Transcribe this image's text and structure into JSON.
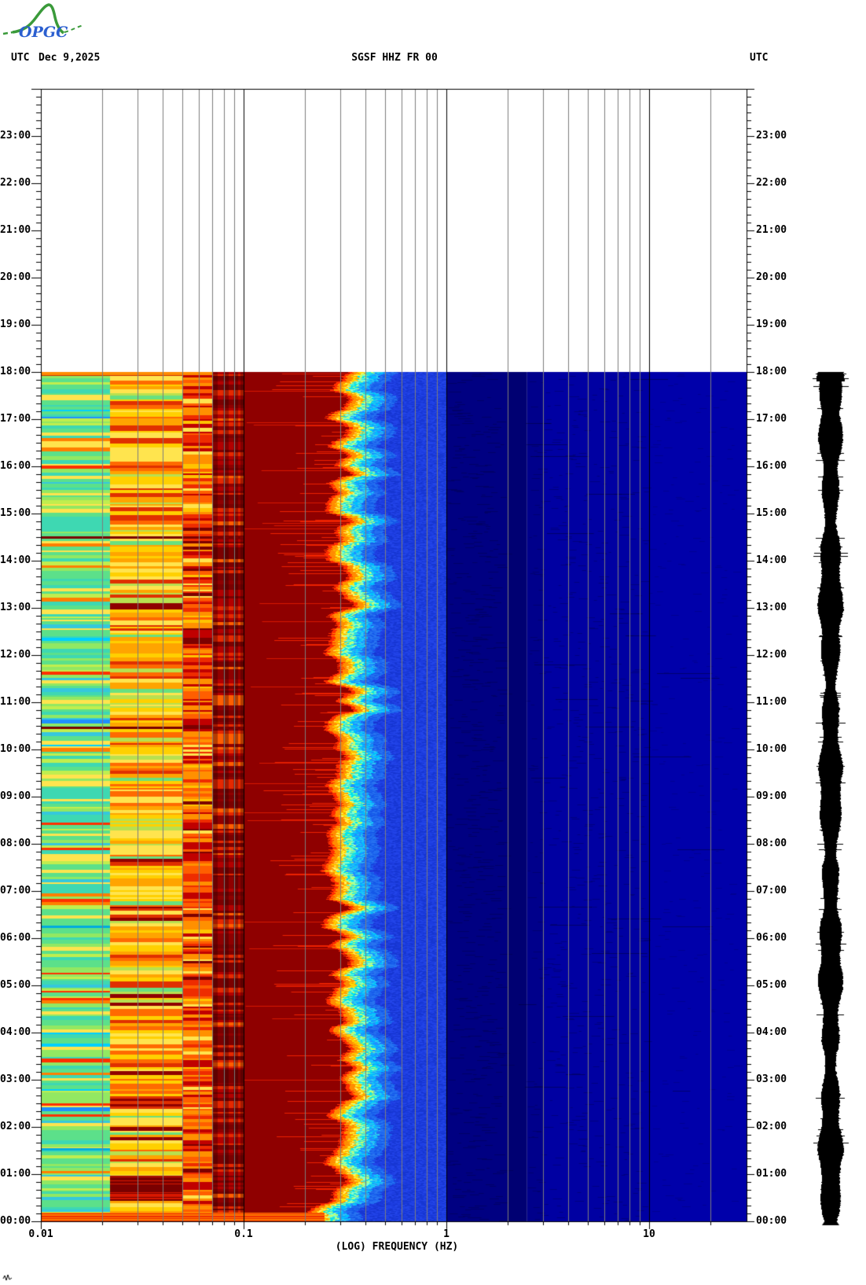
{
  "header": {
    "logo_text": "OPGC",
    "logo_curve_color": "#3a9a3a",
    "logo_text_color": "#2b5fd0",
    "utc_left": "UTC",
    "date": "Dec 9,2025",
    "title": "SGSF HHZ FR 00",
    "utc_right": "UTC"
  },
  "y_axis": {
    "hour_labels": [
      "00:00",
      "01:00",
      "02:00",
      "03:00",
      "04:00",
      "05:00",
      "06:00",
      "07:00",
      "08:00",
      "09:00",
      "10:00",
      "11:00",
      "12:00",
      "13:00",
      "14:00",
      "15:00",
      "16:00",
      "17:00",
      "18:00",
      "19:00",
      "20:00",
      "21:00",
      "22:00",
      "23:00"
    ],
    "minor_tick_minutes": 10
  },
  "x_axis": {
    "title": "(LOG) FREQUENCY (HZ)",
    "scale": "log",
    "min_hz": 0.01,
    "max_hz": 30,
    "tick_labels": [
      {
        "text": "0.01",
        "hz": 0.01
      },
      {
        "text": "0.1",
        "hz": 0.1
      },
      {
        "text": "1",
        "hz": 1
      },
      {
        "text": "10",
        "hz": 10
      }
    ],
    "minor_gridlines_hz": [
      0.02,
      0.03,
      0.04,
      0.05,
      0.06,
      0.07,
      0.08,
      0.09,
      0.2,
      0.3,
      0.4,
      0.5,
      0.6,
      0.7,
      0.8,
      0.9,
      2,
      3,
      4,
      5,
      6,
      7,
      8,
      9,
      20
    ],
    "decade_gridlines_hz": [
      0.1,
      1,
      10
    ],
    "minor_grid_color": "#7d7d7d",
    "decade_grid_color": "#000000"
  },
  "chart_data": {
    "type": "heatmap",
    "subtype": "seismic spectrogram",
    "title": "SGSF HHZ FR 00",
    "date_utc": "Dec 9,2025",
    "colormap": "jet (blue=low power, dark red=high power)",
    "data_time_span_utc": [
      "00:00",
      "18:00"
    ],
    "empty_time_span_utc": [
      "18:00",
      "24:00"
    ],
    "freq_range_hz": [
      0.01,
      30
    ],
    "bands": [
      {
        "hz": [
          0.01,
          0.022
        ],
        "style": "striped",
        "palette": [
          "#5CE08A",
          "#3ED8B2",
          "#92E862",
          "#C0EE4E",
          "#FFE44E",
          "#35C8DC"
        ],
        "weights": [
          26,
          20,
          18,
          10,
          14,
          6
        ],
        "accents": [
          {
            "c": "#FF7F00",
            "p": 0.05
          },
          {
            "c": "#FF3000",
            "p": 0.03
          },
          {
            "c": "#1E90FF",
            "p": 0.02
          },
          {
            "c": "#00CFFF",
            "p": 0.02
          }
        ]
      },
      {
        "hz": [
          0.022,
          0.05
        ],
        "style": "striped",
        "palette": [
          "#FFE44E",
          "#FFD000",
          "#FFA400",
          "#FF6A00",
          "#E03000",
          "#B8E050"
        ],
        "weights": [
          24,
          22,
          18,
          12,
          10,
          8
        ],
        "accents": [
          {
            "c": "#8F0000",
            "p": 0.04
          },
          {
            "c": "#68E080",
            "p": 0.04
          }
        ]
      },
      {
        "hz": [
          0.05,
          0.07
        ],
        "style": "striped",
        "palette": [
          "#FF9000",
          "#FF5E00",
          "#EE2C00",
          "#C00000",
          "#FFC400"
        ],
        "weights": [
          22,
          24,
          22,
          16,
          8
        ],
        "accents": [
          {
            "c": "#7C0000",
            "p": 0.06
          },
          {
            "c": "#FFE44E",
            "p": 0.06
          }
        ]
      },
      {
        "hz": [
          0.07,
          0.1
        ],
        "style": "striped-dark",
        "palette": [
          "#7C0000",
          "#900000",
          "#B40000",
          "#E62800",
          "#FF5E00"
        ],
        "weights": [
          30,
          24,
          18,
          20,
          8
        ],
        "accents": []
      },
      {
        "hz": [
          0.1,
          0.27
        ],
        "style": "solid-maroon",
        "color": "#8F0000",
        "streak_color": "#EE2200",
        "streak_p": 0.12
      },
      {
        "hz": [
          0.27,
          0.55
        ],
        "style": "jagged-transition",
        "ramp": [
          "#FF2D00",
          "#FF8C00",
          "#FFE000",
          "#40E0D0",
          "#00BFFF",
          "#1E68F0",
          "#1C3CE0"
        ]
      },
      {
        "hz": [
          0.55,
          1.0
        ],
        "style": "royal-blue",
        "cells": [
          "#1C3CE0",
          "#1636D2",
          "#2244E8"
        ]
      },
      {
        "hz": [
          1.0,
          2.5
        ],
        "style": "mottled",
        "color": "#000082",
        "dark": "#000068"
      },
      {
        "hz": [
          2.5,
          10.0
        ],
        "style": "mottled",
        "color": "#0000A2",
        "dark": "#000080"
      },
      {
        "hz": [
          10.0,
          30.0
        ],
        "style": "mottled",
        "color": "#0000AA",
        "dark": "#000092"
      }
    ],
    "events": [
      {
        "utc": "17:58",
        "desc": "orange onset row across low frequencies",
        "color": "#FF8C00",
        "hz": [
          0.01,
          0.07
        ]
      },
      {
        "utc": "14:30",
        "desc": "dark red stripe across low band",
        "color": "#7A0000",
        "hz": [
          0.01,
          0.1
        ]
      },
      {
        "utc": "10:28",
        "desc": "dark red stripe across low band",
        "color": "#7A0000",
        "hz": [
          0.01,
          0.1
        ]
      },
      {
        "utc": "06:15",
        "desc": "cyan-blue stripe",
        "color": "#00AADF",
        "hz": [
          0.01,
          0.022
        ]
      },
      {
        "utc": "01:32",
        "desc": "cyan-blue stripe",
        "color": "#00AADF",
        "hz": [
          0.01,
          0.022
        ]
      },
      {
        "utc": "00:40",
        "desc": "dark maroon patch",
        "color": "#7A0000",
        "hz": [
          0.022,
          0.05
        ]
      },
      {
        "utc": "00:05",
        "desc": "bright red-orange band across 0.01-0.25 Hz",
        "color": "#EE3000",
        "hz": [
          0.01,
          0.25
        ]
      }
    ],
    "right_trace": {
      "desc": "helicorder amplitude trace, 00:00-18:00 UTC",
      "color": "#000000"
    },
    "bottom_left_mark": "tiny-trace-mark"
  }
}
